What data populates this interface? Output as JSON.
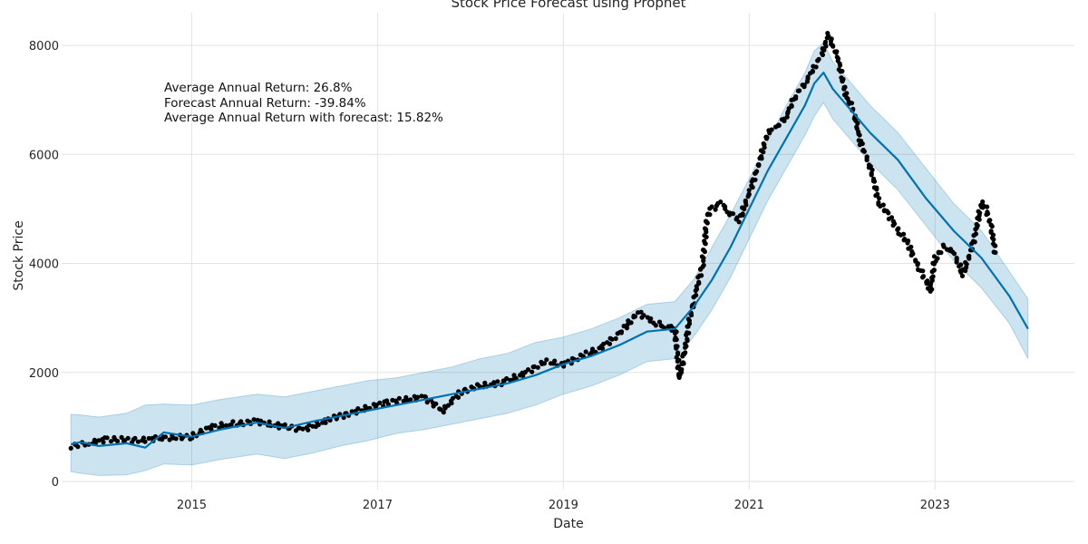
{
  "chart_data": {
    "type": "line",
    "title": "Stock Price Forecast using Prophet",
    "xlabel": "Date",
    "ylabel": "Stock Price",
    "xlim": [
      2013.6,
      2024.5
    ],
    "ylim": [
      -150,
      8600
    ],
    "x_ticks": [
      2015,
      2017,
      2019,
      2021,
      2023
    ],
    "x_tick_labels": [
      "2015",
      "2017",
      "2019",
      "2021",
      "2023"
    ],
    "y_ticks": [
      0,
      2000,
      4000,
      6000,
      8000
    ],
    "y_tick_labels": [
      "0",
      "2000",
      "4000",
      "6000",
      "8000"
    ],
    "grid": true,
    "annotations": [
      "Average Annual Return: 26.8%",
      "Forecast Annual Return: -39.84%",
      "Average Annual Return with forecast: 15.82%"
    ],
    "colors": {
      "forecast": "#0072b2",
      "band": "#0072b2",
      "actual": "#000000"
    },
    "series": [
      {
        "kind": "forecast",
        "x": [
          2013.7,
          2013.8,
          2014.0,
          2014.3,
          2014.5,
          2014.7,
          2015.0,
          2015.3,
          2015.7,
          2016.0,
          2016.3,
          2016.6,
          2016.9,
          2017.2,
          2017.5,
          2017.8,
          2018.1,
          2018.4,
          2018.7,
          2019.0,
          2019.3,
          2019.6,
          2019.9,
          2020.2,
          2020.4,
          2020.6,
          2020.8,
          2021.0,
          2021.2,
          2021.4,
          2021.6,
          2021.7,
          2021.8,
          2021.9,
          2022.1,
          2022.3,
          2022.6,
          2022.9,
          2023.2,
          2023.5,
          2023.8,
          2024.0
        ],
        "y": [
          680,
          720,
          650,
          700,
          620,
          900,
          820,
          950,
          1080,
          980,
          1100,
          1200,
          1300,
          1400,
          1500,
          1600,
          1700,
          1800,
          1950,
          2150,
          2300,
          2500,
          2750,
          2800,
          3200,
          3700,
          4300,
          5000,
          5700,
          6300,
          6900,
          7300,
          7500,
          7200,
          6800,
          6400,
          5900,
          5200,
          4600,
          4100,
          3400,
          2800
        ]
      },
      {
        "kind": "band",
        "x": [
          2013.7,
          2013.8,
          2014.0,
          2014.3,
          2014.5,
          2014.7,
          2015.0,
          2015.3,
          2015.7,
          2016.0,
          2016.3,
          2016.6,
          2016.9,
          2017.2,
          2017.5,
          2017.8,
          2018.1,
          2018.4,
          2018.7,
          2019.0,
          2019.3,
          2019.6,
          2019.9,
          2020.2,
          2020.4,
          2020.6,
          2020.8,
          2021.0,
          2021.2,
          2021.4,
          2021.6,
          2021.7,
          2021.8,
          2021.9,
          2022.1,
          2022.3,
          2022.6,
          2022.9,
          2023.2,
          2023.5,
          2023.8,
          2024.0
        ],
        "upper": [
          1230,
          1220,
          1180,
          1250,
          1400,
          1420,
          1400,
          1500,
          1600,
          1550,
          1650,
          1750,
          1850,
          1900,
          2000,
          2100,
          2250,
          2350,
          2550,
          2650,
          2800,
          3000,
          3250,
          3300,
          3700,
          4300,
          4900,
          5550,
          6250,
          6900,
          7500,
          7900,
          8050,
          7700,
          7300,
          6900,
          6400,
          5750,
          5100,
          4600,
          3850,
          3350
        ],
        "lower": [
          180,
          150,
          110,
          120,
          200,
          320,
          300,
          400,
          500,
          420,
          520,
          650,
          750,
          880,
          950,
          1050,
          1150,
          1250,
          1400,
          1600,
          1750,
          1950,
          2200,
          2250,
          2650,
          3150,
          3750,
          4450,
          5150,
          5750,
          6350,
          6700,
          6950,
          6650,
          6250,
          5850,
          5350,
          4700,
          4050,
          3550,
          2900,
          2250
        ]
      },
      {
        "kind": "actual",
        "x": [
          2013.7,
          2013.9,
          2014.1,
          2014.4,
          2014.7,
          2015.0,
          2015.2,
          2015.4,
          2015.7,
          2016.0,
          2016.2,
          2016.5,
          2016.7,
          2016.9,
          2017.1,
          2017.3,
          2017.5,
          2017.7,
          2017.9,
          2018.1,
          2018.3,
          2018.4,
          2018.6,
          2018.8,
          2019.0,
          2019.2,
          2019.4,
          2019.6,
          2019.8,
          2020.0,
          2020.1,
          2020.2,
          2020.25,
          2020.3,
          2020.35,
          2020.4,
          2020.5,
          2020.55,
          2020.6,
          2020.7,
          2020.8,
          2020.9,
          2021.0,
          2021.1,
          2021.2,
          2021.3,
          2021.4,
          2021.5,
          2021.6,
          2021.7,
          2021.8,
          2021.85,
          2021.9,
          2021.95,
          2022.0,
          2022.05,
          2022.1,
          2022.15,
          2022.2,
          2022.3,
          2022.4,
          2022.5,
          2022.6,
          2022.7,
          2022.8,
          2022.9,
          2022.95,
          2023.0,
          2023.1,
          2023.2,
          2023.3,
          2023.4,
          2023.45,
          2023.5,
          2023.55,
          2023.6,
          2023.65
        ],
        "y": [
          650,
          700,
          780,
          750,
          800,
          820,
          1000,
          1050,
          1100,
          1000,
          950,
          1150,
          1250,
          1350,
          1450,
          1500,
          1550,
          1300,
          1650,
          1750,
          1800,
          1850,
          2000,
          2200,
          2150,
          2300,
          2450,
          2700,
          3100,
          2900,
          2850,
          2800,
          1900,
          2300,
          2900,
          3300,
          4000,
          4900,
          5000,
          5100,
          4900,
          4800,
          5300,
          5800,
          6400,
          6500,
          6700,
          7100,
          7300,
          7600,
          7900,
          8200,
          8000,
          7800,
          7400,
          7000,
          6900,
          6600,
          6200,
          5800,
          5100,
          4900,
          4600,
          4400,
          4000,
          3700,
          3500,
          4100,
          4300,
          4200,
          3800,
          4300,
          4700,
          5100,
          5000,
          4700,
          4200
        ]
      }
    ]
  }
}
